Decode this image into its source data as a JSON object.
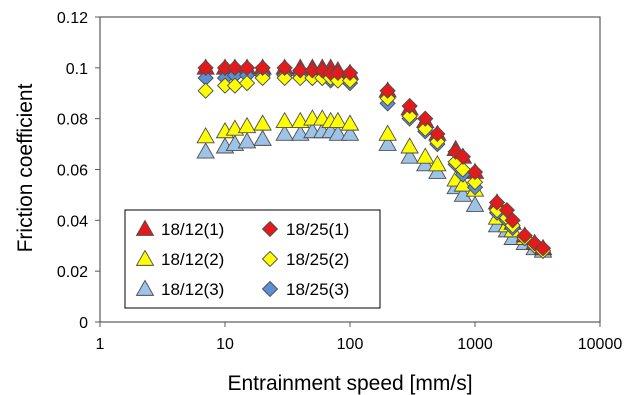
{
  "chart_data": {
    "type": "scatter",
    "xlabel": "Entrainment speed [mm/s]",
    "ylabel": "Friction coefficient",
    "xscale": "log",
    "xlim": [
      1,
      10000
    ],
    "ylim": [
      0,
      0.12
    ],
    "xticks": [
      "1",
      "10",
      "100",
      "1000",
      "10000"
    ],
    "yticks": [
      "0",
      "0.02",
      "0.04",
      "0.06",
      "0.08",
      "0.1",
      "0.12"
    ],
    "grid": false,
    "legend_position": "bottom-left",
    "legend_columns": 2,
    "series": [
      {
        "name": "18/12(1)",
        "marker": "triangle",
        "color": "#e31a1c",
        "points": [
          [
            7,
            0.1
          ],
          [
            10,
            0.1
          ],
          [
            12,
            0.1
          ],
          [
            15,
            0.1
          ],
          [
            20,
            0.1
          ],
          [
            30,
            0.1
          ],
          [
            40,
            0.1
          ],
          [
            50,
            0.1
          ],
          [
            60,
            0.1
          ],
          [
            70,
            0.1
          ],
          [
            80,
            0.099
          ],
          [
            100,
            0.098
          ],
          [
            200,
            0.091
          ],
          [
            300,
            0.084
          ],
          [
            400,
            0.079
          ],
          [
            500,
            0.074
          ],
          [
            700,
            0.068
          ],
          [
            800,
            0.065
          ],
          [
            1000,
            0.059
          ],
          [
            1500,
            0.047
          ],
          [
            1800,
            0.043
          ],
          [
            2000,
            0.039
          ],
          [
            2500,
            0.034
          ],
          [
            3000,
            0.031
          ],
          [
            3500,
            0.029
          ]
        ]
      },
      {
        "name": "18/12(2)",
        "marker": "triangle",
        "color": "#ffff00",
        "points": [
          [
            7,
            0.073
          ],
          [
            10,
            0.075
          ],
          [
            12,
            0.076
          ],
          [
            15,
            0.077
          ],
          [
            20,
            0.078
          ],
          [
            30,
            0.079
          ],
          [
            40,
            0.079
          ],
          [
            50,
            0.08
          ],
          [
            60,
            0.08
          ],
          [
            70,
            0.079
          ],
          [
            80,
            0.079
          ],
          [
            100,
            0.078
          ],
          [
            200,
            0.074
          ],
          [
            300,
            0.069
          ],
          [
            400,
            0.065
          ],
          [
            500,
            0.062
          ],
          [
            700,
            0.056
          ],
          [
            800,
            0.054
          ],
          [
            1000,
            0.052
          ],
          [
            1500,
            0.041
          ],
          [
            1800,
            0.038
          ],
          [
            2000,
            0.036
          ],
          [
            2500,
            0.033
          ],
          [
            3000,
            0.031
          ],
          [
            3500,
            0.029
          ]
        ]
      },
      {
        "name": "18/12(3)",
        "marker": "triangle",
        "color": "#9dc3e6",
        "points": [
          [
            7,
            0.067
          ],
          [
            10,
            0.069
          ],
          [
            12,
            0.07
          ],
          [
            15,
            0.071
          ],
          [
            20,
            0.072
          ],
          [
            30,
            0.074
          ],
          [
            40,
            0.074
          ],
          [
            50,
            0.075
          ],
          [
            60,
            0.075
          ],
          [
            70,
            0.075
          ],
          [
            80,
            0.074
          ],
          [
            100,
            0.074
          ],
          [
            200,
            0.07
          ],
          [
            300,
            0.065
          ],
          [
            400,
            0.062
          ],
          [
            500,
            0.059
          ],
          [
            700,
            0.053
          ],
          [
            800,
            0.05
          ],
          [
            1000,
            0.046
          ],
          [
            1500,
            0.038
          ],
          [
            1800,
            0.036
          ],
          [
            2000,
            0.033
          ],
          [
            2500,
            0.031
          ],
          [
            3000,
            0.029
          ],
          [
            3500,
            0.028
          ]
        ]
      },
      {
        "name": "18/25(1)",
        "marker": "diamond",
        "color": "#e31a1c",
        "points": [
          [
            7,
            0.1
          ],
          [
            10,
            0.1
          ],
          [
            12,
            0.1
          ],
          [
            15,
            0.1
          ],
          [
            20,
            0.1
          ],
          [
            30,
            0.1
          ],
          [
            40,
            0.099
          ],
          [
            50,
            0.099
          ],
          [
            60,
            0.099
          ],
          [
            70,
            0.098
          ],
          [
            80,
            0.098
          ],
          [
            100,
            0.098
          ],
          [
            200,
            0.091
          ],
          [
            300,
            0.085
          ],
          [
            400,
            0.08
          ],
          [
            500,
            0.074
          ],
          [
            700,
            0.067
          ],
          [
            800,
            0.065
          ],
          [
            1000,
            0.059
          ],
          [
            1500,
            0.047
          ],
          [
            1800,
            0.044
          ],
          [
            2000,
            0.04
          ],
          [
            2500,
            0.034
          ],
          [
            3000,
            0.031
          ],
          [
            3500,
            0.029
          ]
        ]
      },
      {
        "name": "18/25(2)",
        "marker": "diamond",
        "color": "#ffff00",
        "points": [
          [
            7,
            0.091
          ],
          [
            10,
            0.093
          ],
          [
            12,
            0.093
          ],
          [
            15,
            0.094
          ],
          [
            20,
            0.096
          ],
          [
            30,
            0.096
          ],
          [
            40,
            0.096
          ],
          [
            50,
            0.096
          ],
          [
            60,
            0.096
          ],
          [
            70,
            0.096
          ],
          [
            80,
            0.095
          ],
          [
            100,
            0.095
          ],
          [
            200,
            0.088
          ],
          [
            300,
            0.081
          ],
          [
            400,
            0.076
          ],
          [
            500,
            0.071
          ],
          [
            700,
            0.063
          ],
          [
            800,
            0.06
          ],
          [
            1000,
            0.055
          ],
          [
            1500,
            0.044
          ],
          [
            1800,
            0.041
          ],
          [
            2000,
            0.038
          ],
          [
            2500,
            0.033
          ],
          [
            3000,
            0.03
          ],
          [
            3500,
            0.028
          ]
        ]
      },
      {
        "name": "18/25(3)",
        "marker": "diamond",
        "color": "#5b8fd6",
        "points": [
          [
            7,
            0.096
          ],
          [
            10,
            0.096
          ],
          [
            12,
            0.097
          ],
          [
            15,
            0.097
          ],
          [
            20,
            0.097
          ],
          [
            30,
            0.097
          ],
          [
            40,
            0.097
          ],
          [
            50,
            0.096
          ],
          [
            60,
            0.096
          ],
          [
            70,
            0.095
          ],
          [
            80,
            0.095
          ],
          [
            100,
            0.094
          ],
          [
            200,
            0.086
          ],
          [
            300,
            0.08
          ],
          [
            400,
            0.075
          ],
          [
            500,
            0.07
          ],
          [
            700,
            0.062
          ],
          [
            800,
            0.058
          ],
          [
            1000,
            0.053
          ],
          [
            1500,
            0.043
          ],
          [
            1800,
            0.04
          ],
          [
            2000,
            0.037
          ],
          [
            2500,
            0.033
          ],
          [
            3000,
            0.03
          ],
          [
            3500,
            0.028
          ]
        ]
      }
    ]
  }
}
